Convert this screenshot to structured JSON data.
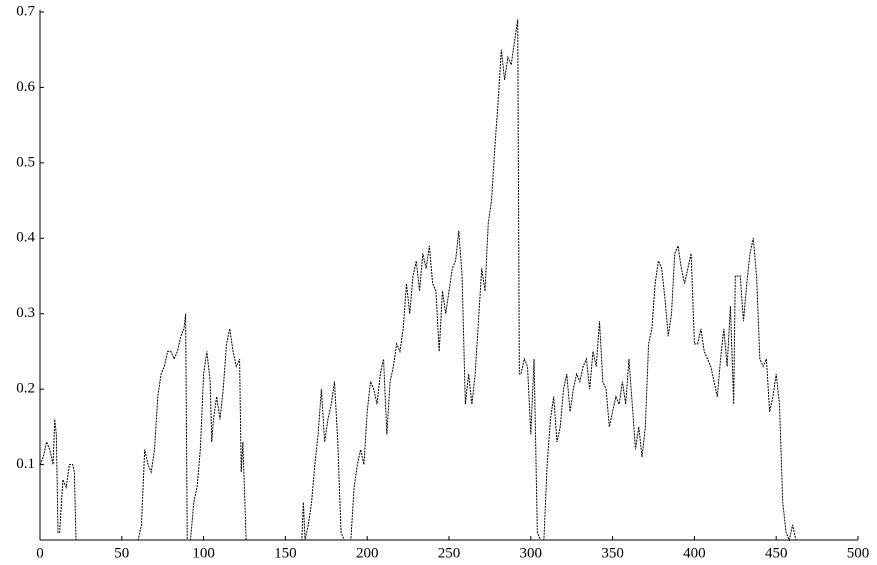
{
  "chart_data": {
    "type": "line",
    "x": [
      0,
      2,
      4,
      6,
      8,
      9,
      10,
      11,
      12,
      14,
      16,
      18,
      20,
      21,
      22,
      30,
      60,
      62,
      64,
      66,
      68,
      70,
      72,
      74,
      76,
      78,
      80,
      82,
      84,
      86,
      88,
      89,
      90,
      92,
      94,
      96,
      98,
      100,
      102,
      104,
      105,
      106,
      108,
      110,
      112,
      114,
      116,
      118,
      120,
      122,
      123,
      124,
      126,
      150,
      160,
      161,
      162,
      164,
      166,
      168,
      170,
      172,
      174,
      176,
      178,
      180,
      182,
      184,
      186,
      190,
      192,
      194,
      196,
      198,
      200,
      202,
      204,
      206,
      208,
      210,
      212,
      214,
      216,
      218,
      220,
      222,
      224,
      226,
      228,
      230,
      232,
      234,
      236,
      238,
      240,
      242,
      244,
      246,
      248,
      250,
      252,
      254,
      256,
      258,
      260,
      262,
      264,
      266,
      268,
      270,
      272,
      274,
      276,
      278,
      280,
      282,
      284,
      286,
      288,
      290,
      292,
      293,
      294,
      296,
      298,
      300,
      302,
      304,
      306,
      308,
      310,
      312,
      314,
      316,
      318,
      320,
      322,
      324,
      326,
      328,
      330,
      332,
      334,
      336,
      338,
      340,
      342,
      344,
      346,
      348,
      350,
      352,
      354,
      356,
      358,
      360,
      362,
      364,
      366,
      368,
      370,
      372,
      374,
      376,
      378,
      380,
      382,
      384,
      386,
      388,
      390,
      392,
      394,
      396,
      398,
      400,
      402,
      404,
      406,
      408,
      410,
      412,
      414,
      416,
      418,
      420,
      422,
      424,
      425,
      428,
      430,
      432,
      434,
      436,
      438,
      440,
      442,
      444,
      446,
      448,
      450,
      452,
      454,
      456,
      458,
      460,
      462,
      480,
      500
    ],
    "series": [
      {
        "color": "#000000",
        "values": [
          0.1,
          0.11,
          0.13,
          0.12,
          0.1,
          0.16,
          0.14,
          0.01,
          0.01,
          0.08,
          0.07,
          0.1,
          0.1,
          0.09,
          0,
          0,
          0,
          0.02,
          0.12,
          0.1,
          0.09,
          0.12,
          0.19,
          0.22,
          0.23,
          0.25,
          0.25,
          0.24,
          0.25,
          0.27,
          0.28,
          0.3,
          0,
          0,
          0.05,
          0.07,
          0.12,
          0.22,
          0.25,
          0.21,
          0.13,
          0.16,
          0.19,
          0.16,
          0.2,
          0.26,
          0.28,
          0.25,
          0.23,
          0.24,
          0.09,
          0.13,
          0,
          0,
          0,
          0.05,
          0,
          0.02,
          0.05,
          0.1,
          0.14,
          0.2,
          0.13,
          0.16,
          0.18,
          0.21,
          0.13,
          0.01,
          0,
          0,
          0.07,
          0.1,
          0.12,
          0.1,
          0.17,
          0.21,
          0.2,
          0.18,
          0.22,
          0.24,
          0.14,
          0.21,
          0.23,
          0.26,
          0.25,
          0.28,
          0.34,
          0.3,
          0.35,
          0.37,
          0.33,
          0.38,
          0.36,
          0.39,
          0.34,
          0.33,
          0.25,
          0.33,
          0.3,
          0.33,
          0.36,
          0.37,
          0.41,
          0.35,
          0.18,
          0.22,
          0.18,
          0.22,
          0.29,
          0.36,
          0.33,
          0.42,
          0.45,
          0.52,
          0.58,
          0.65,
          0.61,
          0.64,
          0.63,
          0.66,
          0.69,
          0.22,
          0.22,
          0.24,
          0.23,
          0.14,
          0.24,
          0.01,
          0,
          0,
          0.1,
          0.16,
          0.19,
          0.13,
          0.15,
          0.2,
          0.22,
          0.17,
          0.2,
          0.22,
          0.21,
          0.23,
          0.24,
          0.2,
          0.25,
          0.23,
          0.29,
          0.21,
          0.2,
          0.15,
          0.17,
          0.19,
          0.18,
          0.21,
          0.18,
          0.24,
          0.18,
          0.12,
          0.15,
          0.11,
          0.15,
          0.26,
          0.28,
          0.34,
          0.37,
          0.36,
          0.32,
          0.27,
          0.3,
          0.38,
          0.39,
          0.36,
          0.34,
          0.36,
          0.38,
          0.26,
          0.26,
          0.28,
          0.25,
          0.24,
          0.23,
          0.21,
          0.19,
          0.24,
          0.28,
          0.23,
          0.31,
          0.18,
          0.35,
          0.35,
          0.29,
          0.34,
          0.38,
          0.4,
          0.35,
          0.24,
          0.23,
          0.24,
          0.17,
          0.19,
          0.22,
          0.18,
          0.05,
          0.01,
          0,
          0.02,
          0,
          0,
          0
        ]
      }
    ],
    "xlim": [
      0,
      500
    ],
    "xticks": [
      0,
      50,
      100,
      150,
      200,
      250,
      300,
      350,
      400,
      450,
      500
    ],
    "ylim": [
      0,
      0.7
    ],
    "yticks": [
      0.1,
      0.2,
      0.3,
      0.4,
      0.5,
      0.6,
      0.7
    ]
  }
}
